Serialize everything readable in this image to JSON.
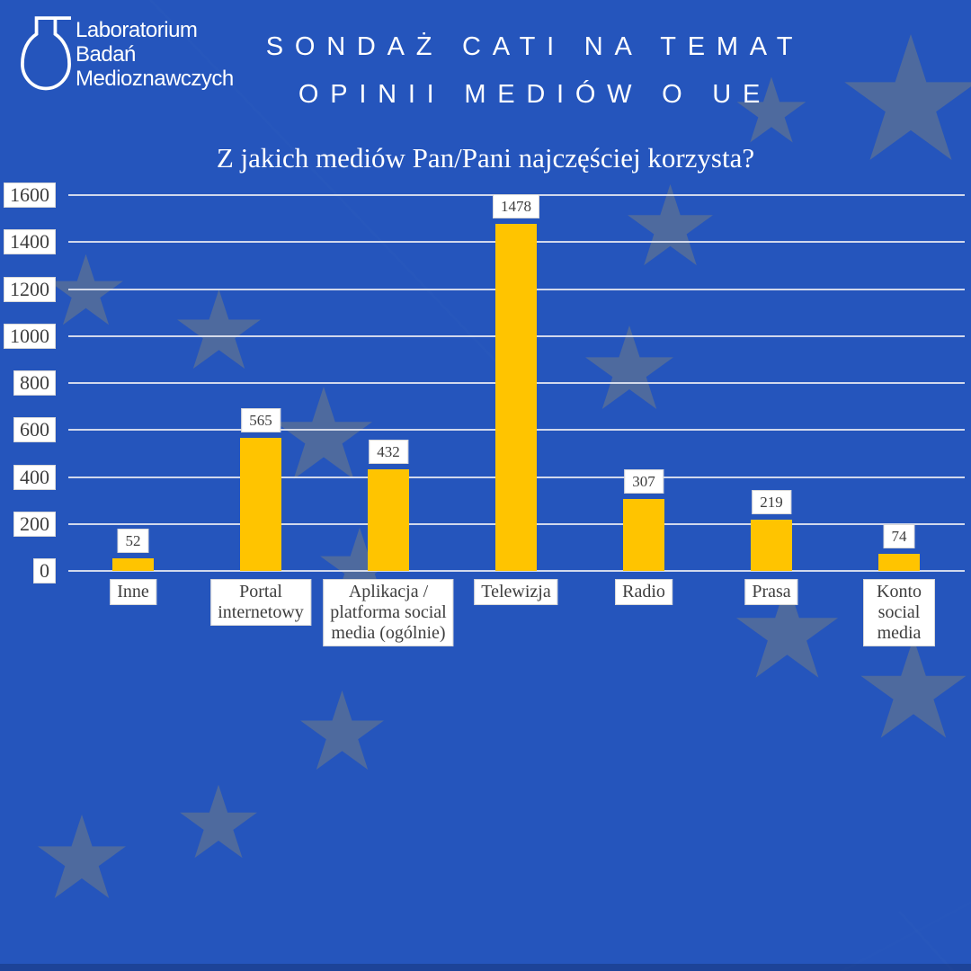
{
  "header": {
    "logo_lines": [
      "Laboratorium",
      "Badań",
      "Medioznawczych"
    ],
    "title_line1": "SONDAŻ CATI NA TEMAT",
    "title_line2": "OPINII MEDIÓW O UE"
  },
  "chart_data": {
    "type": "bar",
    "title": "Z jakich mediów Pan/Pani najczęściej korzysta?",
    "categories": [
      "Inne",
      "Portal\ninternetowy",
      "Aplikacja /\nplatforma social\nmedia (ogólnie)",
      "Telewizja",
      "Radio",
      "Prasa",
      "Konto social\nmedia"
    ],
    "values": [
      52,
      565,
      432,
      1478,
      307,
      219,
      74
    ],
    "value_labels": [
      "52",
      "565",
      "432",
      "1478",
      "307",
      "219",
      "74"
    ],
    "yticks": [
      0,
      200,
      400,
      600,
      800,
      1000,
      1200,
      1400,
      1600
    ],
    "ylim": [
      0,
      1600
    ],
    "grid": true,
    "legend": "none",
    "xlabel": "",
    "ylabel": ""
  },
  "colors": {
    "background": "#2555BC",
    "star": "#4E6A9E",
    "bar": "#FFC400",
    "gridline": "#DDE1EC",
    "box_text": "#3E3E3E",
    "title_text": "#FFFFFF"
  }
}
